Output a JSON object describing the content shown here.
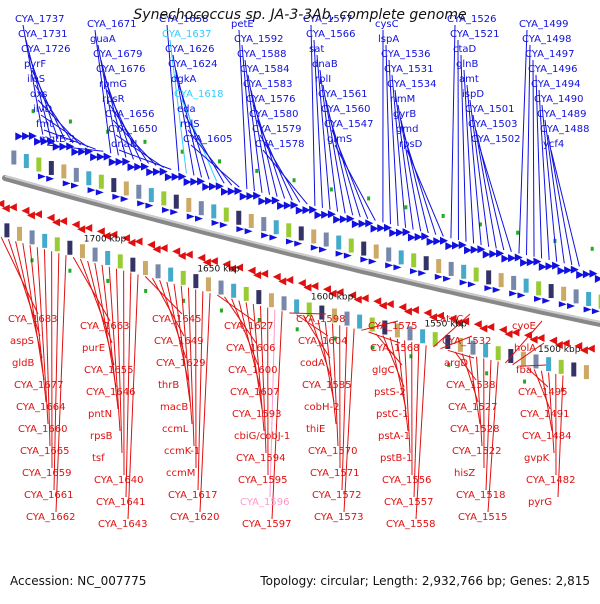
{
  "title": "Synechococcus sp. JA-3-3Ab, complete genome",
  "footer": {
    "accession": "Accession: NC_007775",
    "summary": "Topology: circular; Length: 2,932,766 bp; Genes: 2,815"
  },
  "colors": {
    "forward": "#1010e0",
    "reverse": "#e01010",
    "forward_alt": "#33ccff",
    "reverse_alt": "#ff99cc",
    "backbone": "#888888"
  },
  "kbp_labels": [
    "1700 kbp",
    "1650 kbp",
    "1600 kbp",
    "1550 kbp",
    "1500 kbp"
  ],
  "top_labels": [
    {
      "t": "CYA_1737"
    },
    {
      "t": "CYA_1731"
    },
    {
      "t": "CYA_1726"
    },
    {
      "t": "pyrF"
    },
    {
      "t": "ileS"
    },
    {
      "t": "dxs"
    },
    {
      "t": "ilvD"
    },
    {
      "t": "fmt"
    },
    {
      "t": "mgtE-2"
    },
    {
      "t": "CYA_1671"
    },
    {
      "t": "guaA"
    },
    {
      "t": "CYA_1679"
    },
    {
      "t": "CYA_1676"
    },
    {
      "t": "rpmG"
    },
    {
      "t": "rpsR"
    },
    {
      "t": "CYA_1656"
    },
    {
      "t": "CYA_1650"
    },
    {
      "t": "dnaN"
    },
    {
      "t": "CYA_1658"
    },
    {
      "t": "CYA_1637",
      "alt": true
    },
    {
      "t": "CYA_1626"
    },
    {
      "t": "CYA_1624"
    },
    {
      "t": "dgkA"
    },
    {
      "t": "CYA_1618",
      "alt": true
    },
    {
      "t": "eda"
    },
    {
      "t": "rplS"
    },
    {
      "t": "CYA_1605"
    },
    {
      "t": "petE"
    },
    {
      "t": "CYA_1592"
    },
    {
      "t": "CYA_1588"
    },
    {
      "t": "CYA_1584"
    },
    {
      "t": "CYA_1583"
    },
    {
      "t": "CYA_1576"
    },
    {
      "t": "CYA_1580"
    },
    {
      "t": "CYA_1579"
    },
    {
      "t": "CYA_1578"
    },
    {
      "t": "CYA_1577"
    },
    {
      "t": "CYA_1566"
    },
    {
      "t": "sat"
    },
    {
      "t": "dnaB"
    },
    {
      "t": "rplI"
    },
    {
      "t": "CYA_1561"
    },
    {
      "t": "CYA_1560"
    },
    {
      "t": "CYA_1547"
    },
    {
      "t": "glmS"
    },
    {
      "t": "cysC"
    },
    {
      "t": "lspA"
    },
    {
      "t": "CYA_1536"
    },
    {
      "t": "CYA_1531"
    },
    {
      "t": "CYA_1534"
    },
    {
      "t": "rimM"
    },
    {
      "t": "gyrB"
    },
    {
      "t": "gmd"
    },
    {
      "t": "rpsD"
    },
    {
      "t": "CYA_1526"
    },
    {
      "t": "CYA_1521"
    },
    {
      "t": "ctaD"
    },
    {
      "t": "glnB"
    },
    {
      "t": "amt"
    },
    {
      "t": "ispD"
    },
    {
      "t": "CYA_1501"
    },
    {
      "t": "CYA_1503"
    },
    {
      "t": "CYA_1502"
    },
    {
      "t": "CYA_1499"
    },
    {
      "t": "CYA_1498"
    },
    {
      "t": "CYA_1497"
    },
    {
      "t": "CYA_1496"
    },
    {
      "t": "CYA_1494"
    },
    {
      "t": "CYA_1490"
    },
    {
      "t": "CYA_1489"
    },
    {
      "t": "CYA_1488"
    },
    {
      "t": "ycf4"
    }
  ],
  "bottom_labels": [
    {
      "t": "CYA_1683"
    },
    {
      "t": "aspS"
    },
    {
      "t": "gldB"
    },
    {
      "t": "CYA_1677"
    },
    {
      "t": "CYA_1664"
    },
    {
      "t": "CYA_1660"
    },
    {
      "t": "CYA_1665"
    },
    {
      "t": "CYA_1659"
    },
    {
      "t": "CYA_1661"
    },
    {
      "t": "CYA_1662"
    },
    {
      "t": "CYA_1663"
    },
    {
      "t": "purE"
    },
    {
      "t": "CYA_1655"
    },
    {
      "t": "CYA_1646"
    },
    {
      "t": "pntN"
    },
    {
      "t": "rpsB"
    },
    {
      "t": "tsf"
    },
    {
      "t": "CYA_1640"
    },
    {
      "t": "CYA_1641"
    },
    {
      "t": "CYA_1643"
    },
    {
      "t": "CYA_1645"
    },
    {
      "t": "CYA_1649"
    },
    {
      "t": "CYA_1629"
    },
    {
      "t": "thrB"
    },
    {
      "t": "macB"
    },
    {
      "t": "ccmL"
    },
    {
      "t": "ccmK-1"
    },
    {
      "t": "ccmM"
    },
    {
      "t": "CYA_1617"
    },
    {
      "t": "CYA_1620"
    },
    {
      "t": "CYA_1627"
    },
    {
      "t": "CYA_1606"
    },
    {
      "t": "CYA_1600"
    },
    {
      "t": "CYA_1607"
    },
    {
      "t": "CYA_1593"
    },
    {
      "t": "cbiG/cobJ-1"
    },
    {
      "t": "CYA_1594"
    },
    {
      "t": "CYA_1595"
    },
    {
      "t": "CYA_1596",
      "alt": true
    },
    {
      "t": "CYA_1597"
    },
    {
      "t": "CYA_1598"
    },
    {
      "t": "CYA_1604"
    },
    {
      "t": "codA"
    },
    {
      "t": "CYA_1585"
    },
    {
      "t": "cobH-2"
    },
    {
      "t": "thiE"
    },
    {
      "t": "CYA_1570"
    },
    {
      "t": "CYA_1571"
    },
    {
      "t": "CYA_1572"
    },
    {
      "t": "CYA_1573"
    },
    {
      "t": "CYA_1575"
    },
    {
      "t": "CYA_1568"
    },
    {
      "t": "glgC"
    },
    {
      "t": "pstS-2"
    },
    {
      "t": "pstC-1"
    },
    {
      "t": "pstA-1"
    },
    {
      "t": "pstB-1"
    },
    {
      "t": "CYA_1556"
    },
    {
      "t": "CYA_1557"
    },
    {
      "t": "CYA_1558"
    },
    {
      "t": "atpC"
    },
    {
      "t": "CYA_1532"
    },
    {
      "t": "argD"
    },
    {
      "t": "CYA_1538"
    },
    {
      "t": "CYA_1527"
    },
    {
      "t": "CYA_1528"
    },
    {
      "t": "CYA_1522"
    },
    {
      "t": "hisZ"
    },
    {
      "t": "CYA_1518"
    },
    {
      "t": "CYA_1515"
    },
    {
      "t": "cyoE"
    },
    {
      "t": "holA"
    },
    {
      "t": "fba"
    },
    {
      "t": "CYA_1495"
    },
    {
      "t": "CYA_1491"
    },
    {
      "t": "CYA_1484"
    },
    {
      "t": "gvpK"
    },
    {
      "t": "CYA_1482"
    },
    {
      "t": "pyrG"
    }
  ]
}
